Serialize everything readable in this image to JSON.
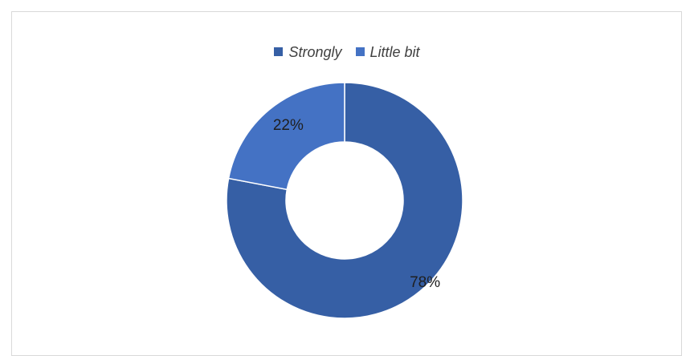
{
  "chart_data": {
    "type": "pie",
    "variant": "donut",
    "title": "",
    "legend_position": "top",
    "categories": [
      "Strongly",
      "Little bit"
    ],
    "values": [
      78,
      22
    ],
    "data_labels": [
      "78%",
      "22%"
    ],
    "colors": [
      "#365fa5",
      "#4472c4"
    ]
  }
}
